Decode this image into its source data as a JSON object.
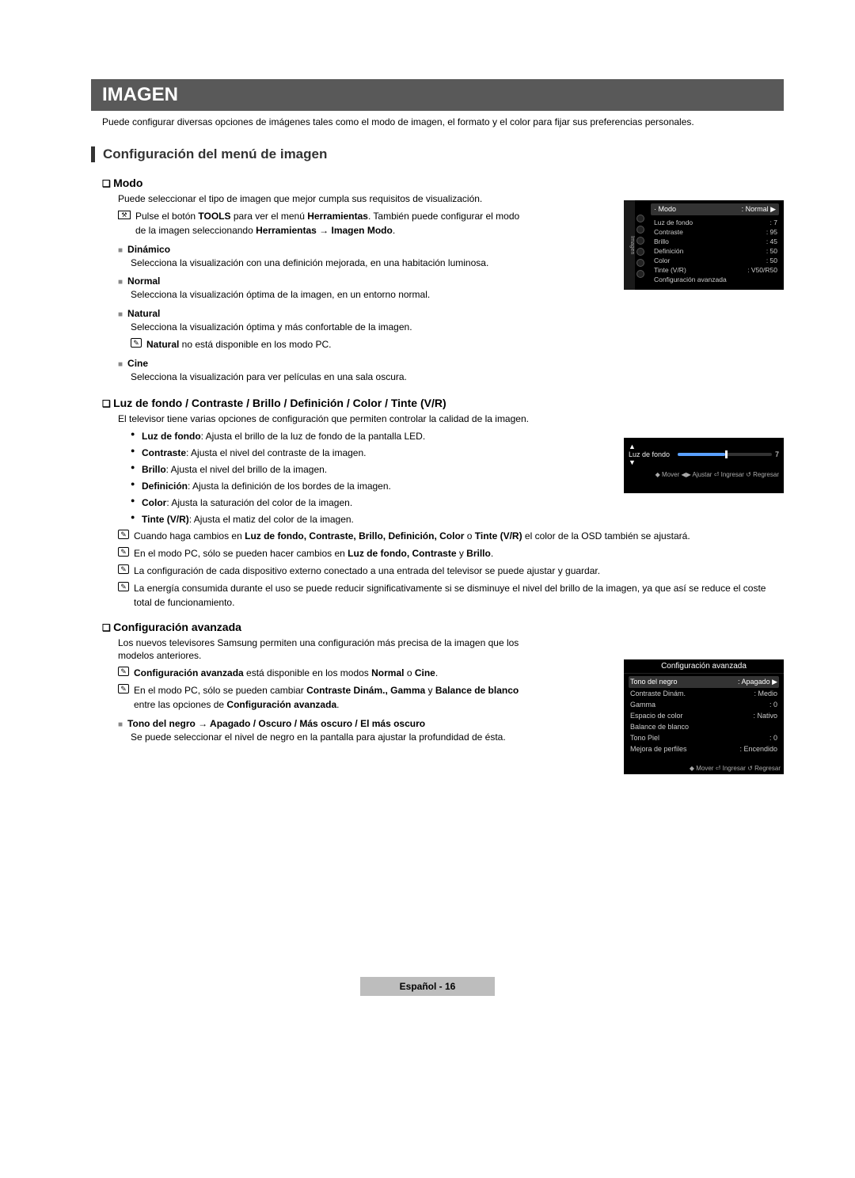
{
  "header": {
    "title": "IMAGEN"
  },
  "intro": "Puede configurar diversas opciones de imágenes tales como el modo de imagen, el formato y el color para fijar sus preferencias personales.",
  "section_title": "Configuración del menú de imagen",
  "modo": {
    "title": "Modo",
    "desc": "Puede seleccionar el tipo de imagen que mejor cumpla sus requisitos de visualización.",
    "tool_prefix": "Pulse el botón ",
    "tool_b1": "TOOLS",
    "tool_mid": " para ver el menú ",
    "tool_b2": "Herramientas",
    "tool_tail": ". También puede configurar el modo de la imagen seleccionando ",
    "tool_b3": "Herramientas → Imagen Modo",
    "tool_end": ".",
    "items": [
      {
        "name": "Dinámico",
        "desc": "Selecciona la visualización con una definición mejorada, en una habitación luminosa."
      },
      {
        "name": "Normal",
        "desc": "Selecciona la visualización óptima de la imagen, en un entorno normal."
      },
      {
        "name": "Natural",
        "desc": "Selecciona la visualización óptima y más confortable de la imagen.",
        "note_b": "Natural",
        "note_t": " no está disponible en los modo PC."
      },
      {
        "name": "Cine",
        "desc": "Selecciona la visualización para ver películas en una sala oscura."
      }
    ]
  },
  "luz": {
    "title": "Luz de fondo / Contraste / Brillo / Definición / Color / Tinte (V/R)",
    "desc": "El televisor tiene varias opciones de configuración que permiten controlar la calidad de la imagen.",
    "bullets": [
      {
        "b": "Luz de fondo",
        "t": ": Ajusta el brillo de la luz de fondo de la pantalla LED."
      },
      {
        "b": "Contraste",
        "t": ": Ajusta el nivel del contraste de la imagen."
      },
      {
        "b": "Brillo",
        "t": ": Ajusta el nivel del brillo de la imagen."
      },
      {
        "b": "Definición",
        "t": ": Ajusta la definición de los bordes de la imagen."
      },
      {
        "b": "Color",
        "t": ": Ajusta la saturación del color de la imagen."
      },
      {
        "b": "Tinte (V/R)",
        "t": ": Ajusta el matiz del color de la imagen."
      }
    ],
    "notes": [
      {
        "pre": "Cuando haga cambios en ",
        "b": "Luz de fondo, Contraste, Brillo, Definición, Color",
        "mid": " o ",
        "b2": "Tinte (V/R)",
        "post": " el color de la OSD también se ajustará."
      },
      {
        "pre": "En el modo PC, sólo se pueden hacer cambios en ",
        "b": "Luz de fondo, Contraste",
        "mid": " y ",
        "b2": "Brillo",
        "post": "."
      },
      {
        "plain": "La configuración de cada dispositivo externo conectado a una entrada del televisor se puede ajustar y guardar."
      },
      {
        "plain": "La energía consumida durante el uso se puede reducir significativamente si se disminuye el nivel del brillo de la imagen, ya que así se reduce el coste total de funcionamiento."
      }
    ]
  },
  "conf": {
    "title": "Configuración avanzada",
    "desc": "Los nuevos televisores Samsung permiten una configuración más precisa de la imagen que los modelos anteriores.",
    "n1_b": "Configuración avanzada",
    "n1_mid": " está disponible en los modos ",
    "n1_b2": "Normal",
    "n1_mid2": " o ",
    "n1_b3": "Cine",
    "n1_end": ".",
    "n2_pre": "En el modo PC, sólo se pueden cambiar ",
    "n2_b": "Contraste Dinám., Gamma",
    "n2_mid": " y ",
    "n2_b2": "Balance de blanco",
    "n2_post": " entre las opciones de ",
    "n2_b3": "Configuración avanzada",
    "n2_end": ".",
    "sq_label": "Tono del negro → Apagado / Oscuro / Más oscuro / El más oscuro",
    "sq_desc": "Se puede seleccionar el nivel de negro en la pantalla para ajustar la profundidad de ésta."
  },
  "osd1": {
    "side": "Imagen",
    "modo": "Modo",
    "modo_v": ": Normal",
    "rows": [
      {
        "k": "Luz de fondo",
        "v": ": 7"
      },
      {
        "k": "Contraste",
        "v": ": 95"
      },
      {
        "k": "Brillo",
        "v": ": 45"
      },
      {
        "k": "Definición",
        "v": ": 50"
      },
      {
        "k": "Color",
        "v": ": 50"
      },
      {
        "k": "Tinte (V/R)",
        "v": ": V50/R50"
      },
      {
        "k": "Configuración avanzada",
        "v": ""
      }
    ]
  },
  "osd2": {
    "label": "Luz de fondo",
    "value": "7",
    "nav": "◆ Mover   ◀▶ Ajustar   ⏎ Ingresar   ↺ Regresar"
  },
  "osd3": {
    "title": "Configuración avanzada",
    "rows": [
      {
        "k": "Tono del negro",
        "v": ": Apagado",
        "sel": true
      },
      {
        "k": "Contraste Dinám.",
        "v": ": Medio"
      },
      {
        "k": "Gamma",
        "v": ": 0"
      },
      {
        "k": "Espacio de color",
        "v": ": Nativo"
      },
      {
        "k": "Balance de blanco",
        "v": ""
      },
      {
        "k": "Tono Piel",
        "v": ": 0"
      },
      {
        "k": "Mejora de perfiles",
        "v": ": Encendido"
      }
    ],
    "nav": "◆ Mover   ⏎ Ingresar   ↺ Regresar"
  },
  "footer": {
    "lang": "Español - ",
    "page": "16"
  }
}
